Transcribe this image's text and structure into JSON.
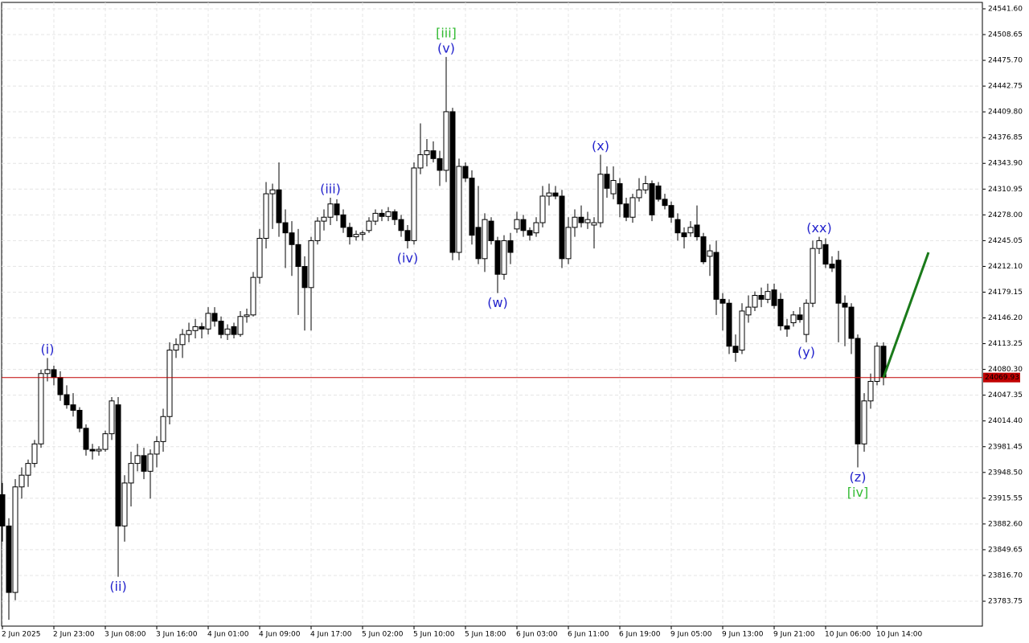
{
  "chart_data": {
    "type": "candlestick",
    "categories": [
      "2 Jun 2025",
      null,
      null,
      null,
      null,
      null,
      null,
      null,
      "2 Jun 23:00",
      null,
      null,
      null,
      null,
      null,
      null,
      null,
      "3 Jun 08:00",
      null,
      null,
      null,
      null,
      null,
      null,
      null,
      "3 Jun 16:00",
      null,
      null,
      null,
      null,
      null,
      null,
      null,
      "4 Jun 01:00",
      null,
      null,
      null,
      null,
      null,
      null,
      null,
      "4 Jun 09:00",
      null,
      null,
      null,
      null,
      null,
      null,
      null,
      "4 Jun 17:00",
      null,
      null,
      null,
      null,
      null,
      null,
      null,
      "5 Jun 02:00",
      null,
      null,
      null,
      null,
      null,
      null,
      null,
      "5 Jun 10:00",
      null,
      null,
      null,
      null,
      null,
      null,
      null,
      "5 Jun 18:00",
      null,
      null,
      null,
      null,
      null,
      null,
      null,
      "6 Jun 03:00",
      null,
      null,
      null,
      null,
      null,
      null,
      null,
      "6 Jun 11:00",
      null,
      null,
      null,
      null,
      null,
      null,
      null,
      "6 Jun 19:00",
      null,
      null,
      null,
      null,
      null,
      null,
      null,
      "9 Jun 05:00",
      null,
      null,
      null,
      null,
      null,
      null,
      null,
      "9 Jun 13:00",
      null,
      null,
      null,
      null,
      null,
      null,
      null,
      "9 Jun 21:00",
      null,
      null,
      null,
      null,
      null,
      null,
      null,
      "10 Jun 06:00",
      null,
      null,
      null,
      null,
      null,
      null,
      null,
      "10 Jun 14:00",
      null
    ],
    "open": [
      23920,
      23880,
      23795,
      23930,
      23945,
      23960,
      23985,
      24075,
      24080,
      24070,
      24048,
      24035,
      24028,
      24005,
      23978,
      23976,
      23978,
      23998,
      24035,
      23880,
      23935,
      23960,
      23970,
      23950,
      23972,
      23988,
      24020,
      24105,
      24112,
      24125,
      24130,
      24135,
      24132,
      24152,
      24142,
      24125,
      24135,
      24125,
      24148,
      24150,
      24198,
      24248,
      24305,
      24310,
      24268,
      24255,
      24240,
      24212,
      24185,
      24245,
      24270,
      24275,
      24292,
      24278,
      24262,
      24250,
      24253,
      24258,
      24270,
      24280,
      24276,
      24282,
      24272,
      24258,
      24245,
      24338,
      24355,
      24360,
      24350,
      24335,
      24410,
      24230,
      24340,
      24325,
      24262,
      24222,
      24270,
      24245,
      24202,
      24245,
      24260,
      24272,
      24258,
      24255,
      24268,
      24302,
      24306,
      24302,
      24222,
      24262,
      24275,
      24268,
      24265,
      24268,
      24330,
      24305,
      24318,
      24292,
      24275,
      24300,
      24310,
      24318,
      24315,
      24298,
      24290,
      24272,
      24255,
      24255,
      24265,
      24250,
      24225,
      24230,
      24170,
      24165,
      24110,
      24105,
      24150,
      24160,
      24175,
      24170,
      24182,
      24170,
      24136,
      24140,
      24150,
      24125,
      24165,
      24235,
      24240,
      24215,
      24220,
      24165,
      24160,
      24120,
      23985,
      24040,
      24065,
      24110
    ],
    "high": [
      23935,
      23890,
      23940,
      23955,
      23965,
      23990,
      24080,
      24095,
      24085,
      24078,
      24060,
      24050,
      24032,
      24010,
      23985,
      23982,
      24002,
      24045,
      24045,
      23945,
      23975,
      23985,
      23980,
      23978,
      23995,
      24030,
      24115,
      24120,
      24132,
      24140,
      24145,
      24140,
      24160,
      24160,
      24148,
      24138,
      24140,
      24155,
      24158,
      24205,
      24260,
      24320,
      24318,
      24345,
      24285,
      24270,
      24260,
      24225,
      24250,
      24275,
      24285,
      24300,
      24298,
      24285,
      24268,
      24258,
      24258,
      24275,
      24285,
      24285,
      24288,
      24285,
      24278,
      24265,
      24345,
      24395,
      24375,
      24372,
      24360,
      24480,
      24415,
      24350,
      24345,
      24335,
      24315,
      24280,
      24275,
      24250,
      24252,
      24255,
      24282,
      24278,
      24262,
      24275,
      24315,
      24318,
      24315,
      24310,
      24275,
      24285,
      24290,
      24282,
      24275,
      24355,
      24340,
      24340,
      24325,
      24300,
      24305,
      24325,
      24328,
      24322,
      24320,
      24305,
      24295,
      24280,
      24262,
      24270,
      24290,
      24255,
      24240,
      24245,
      24178,
      24170,
      24125,
      24165,
      24175,
      24180,
      24185,
      24190,
      24190,
      24178,
      24145,
      24155,
      24160,
      24170,
      24245,
      24250,
      24248,
      24225,
      24232,
      24175,
      24165,
      24125,
      24050,
      24075,
      24115,
      24115
    ],
    "low": [
      23860,
      23760,
      23785,
      23915,
      23930,
      23955,
      23980,
      24065,
      24060,
      24040,
      24030,
      24020,
      24000,
      23970,
      23965,
      23970,
      23975,
      23990,
      23815,
      23860,
      23905,
      23950,
      23940,
      23915,
      23955,
      23975,
      24010,
      24095,
      24095,
      24115,
      24120,
      24120,
      24125,
      24135,
      24120,
      24118,
      24120,
      24122,
      24140,
      24148,
      24190,
      24235,
      24260,
      24250,
      24210,
      24200,
      24150,
      24130,
      24130,
      24240,
      24258,
      24265,
      24270,
      24255,
      24240,
      24245,
      24245,
      24255,
      24265,
      24270,
      24270,
      24265,
      24250,
      24235,
      24240,
      24330,
      24340,
      24345,
      24315,
      24320,
      24220,
      24220,
      24320,
      24240,
      24215,
      24205,
      24240,
      24178,
      24195,
      24215,
      24255,
      24250,
      24245,
      24250,
      24262,
      24290,
      24298,
      24210,
      24215,
      24250,
      24262,
      24260,
      24235,
      24262,
      24300,
      24298,
      24275,
      24270,
      24268,
      24295,
      24305,
      24270,
      24295,
      24285,
      24268,
      24245,
      24235,
      24250,
      24245,
      24215,
      24200,
      24150,
      24130,
      24100,
      24090,
      24100,
      24140,
      24155,
      24160,
      24165,
      24158,
      24130,
      24122,
      24135,
      24140,
      24115,
      24160,
      24228,
      24210,
      24205,
      24115,
      24110,
      24100,
      23955,
      23975,
      24030,
      24060,
      24060
    ],
    "close": [
      23880,
      23795,
      23930,
      23945,
      23960,
      23985,
      24075,
      24080,
      24070,
      24048,
      24035,
      24028,
      24005,
      23978,
      23976,
      23978,
      23998,
      24040,
      23880,
      23935,
      23960,
      23970,
      23950,
      23972,
      23988,
      24020,
      24105,
      24112,
      24125,
      24130,
      24135,
      24132,
      24152,
      24142,
      24125,
      24132,
      24125,
      24148,
      24150,
      24198,
      24248,
      24305,
      24310,
      24268,
      24255,
      24240,
      24212,
      24185,
      24245,
      24270,
      24275,
      24292,
      24278,
      24262,
      24250,
      24253,
      24255,
      24270,
      24280,
      24276,
      24282,
      24272,
      24258,
      24245,
      24338,
      24355,
      24360,
      24350,
      24335,
      24410,
      24230,
      24340,
      24325,
      24252,
      24222,
      24272,
      24245,
      24202,
      24245,
      24230,
      24272,
      24258,
      24252,
      24268,
      24302,
      24306,
      24302,
      24222,
      24262,
      24275,
      24268,
      24272,
      24268,
      24330,
      24312,
      24322,
      24292,
      24275,
      24300,
      24310,
      24318,
      24278,
      24298,
      24290,
      24275,
      24255,
      24250,
      24262,
      24250,
      24218,
      24232,
      24170,
      24165,
      24110,
      24102,
      24155,
      24160,
      24175,
      24170,
      24180,
      24162,
      24136,
      24132,
      24150,
      24144,
      24165,
      24235,
      24245,
      24215,
      24210,
      24165,
      24160,
      24120,
      23985,
      24040,
      24065,
      24110,
      24070
    ],
    "up_color": "#ffffff",
    "down_color": "#000000",
    "ylim": [
      23751.9,
      24549.8
    ],
    "yticks": [
      {
        "value": 24541.6,
        "label": "24541.60"
      },
      24508.65,
      {
        "value": 24475.7,
        "label": "24475.70"
      },
      24442.75,
      {
        "value": 24409.8,
        "label": "24409.80"
      },
      24376.85,
      {
        "value": 24343.9,
        "label": "24343.90"
      },
      24310.95,
      {
        "value": 24278,
        "label": "24278.00"
      },
      24245.05,
      {
        "value": 24212.1,
        "label": "24212.10"
      },
      24179.15,
      {
        "value": 24146.2,
        "label": "24146.20"
      },
      24113.25,
      {
        "value": 24080.3,
        "label": "24080.30"
      },
      24047.35,
      {
        "value": 24014.4,
        "label": "24014.40"
      },
      23981.45,
      {
        "value": 23948.5,
        "label": "23948.50"
      },
      23915.55,
      {
        "value": 23882.6,
        "label": "23882.60"
      },
      23849.65,
      {
        "value": 23816.7,
        "label": "23816.70"
      },
      23783.75
    ],
    "grid": true,
    "current_price": {
      "value": 24069.93,
      "color": "#c00000"
    },
    "projection": {
      "from": 24070,
      "to": 24230,
      "color": "#1a7a1a"
    },
    "annotations": [
      {
        "text": "(i)",
        "color": "#2222cc"
      },
      {
        "text": "(ii)",
        "color": "#2222cc"
      },
      {
        "text": "(iii)",
        "color": "#2222cc"
      },
      {
        "text": "(iv)",
        "color": "#2222cc"
      },
      {
        "text": "(v)",
        "color": "#2222cc"
      },
      {
        "text": "[iii]",
        "color": "#33bb33"
      },
      {
        "text": "(w)",
        "color": "#2222cc"
      },
      {
        "text": "(x)",
        "color": "#2222cc"
      },
      {
        "text": "(y)",
        "color": "#2222cc"
      },
      {
        "text": "(xx)",
        "color": "#2222cc"
      },
      {
        "text": "(z)",
        "color": "#2222cc"
      },
      {
        "text": "[iv]",
        "color": "#33bb33"
      }
    ]
  }
}
